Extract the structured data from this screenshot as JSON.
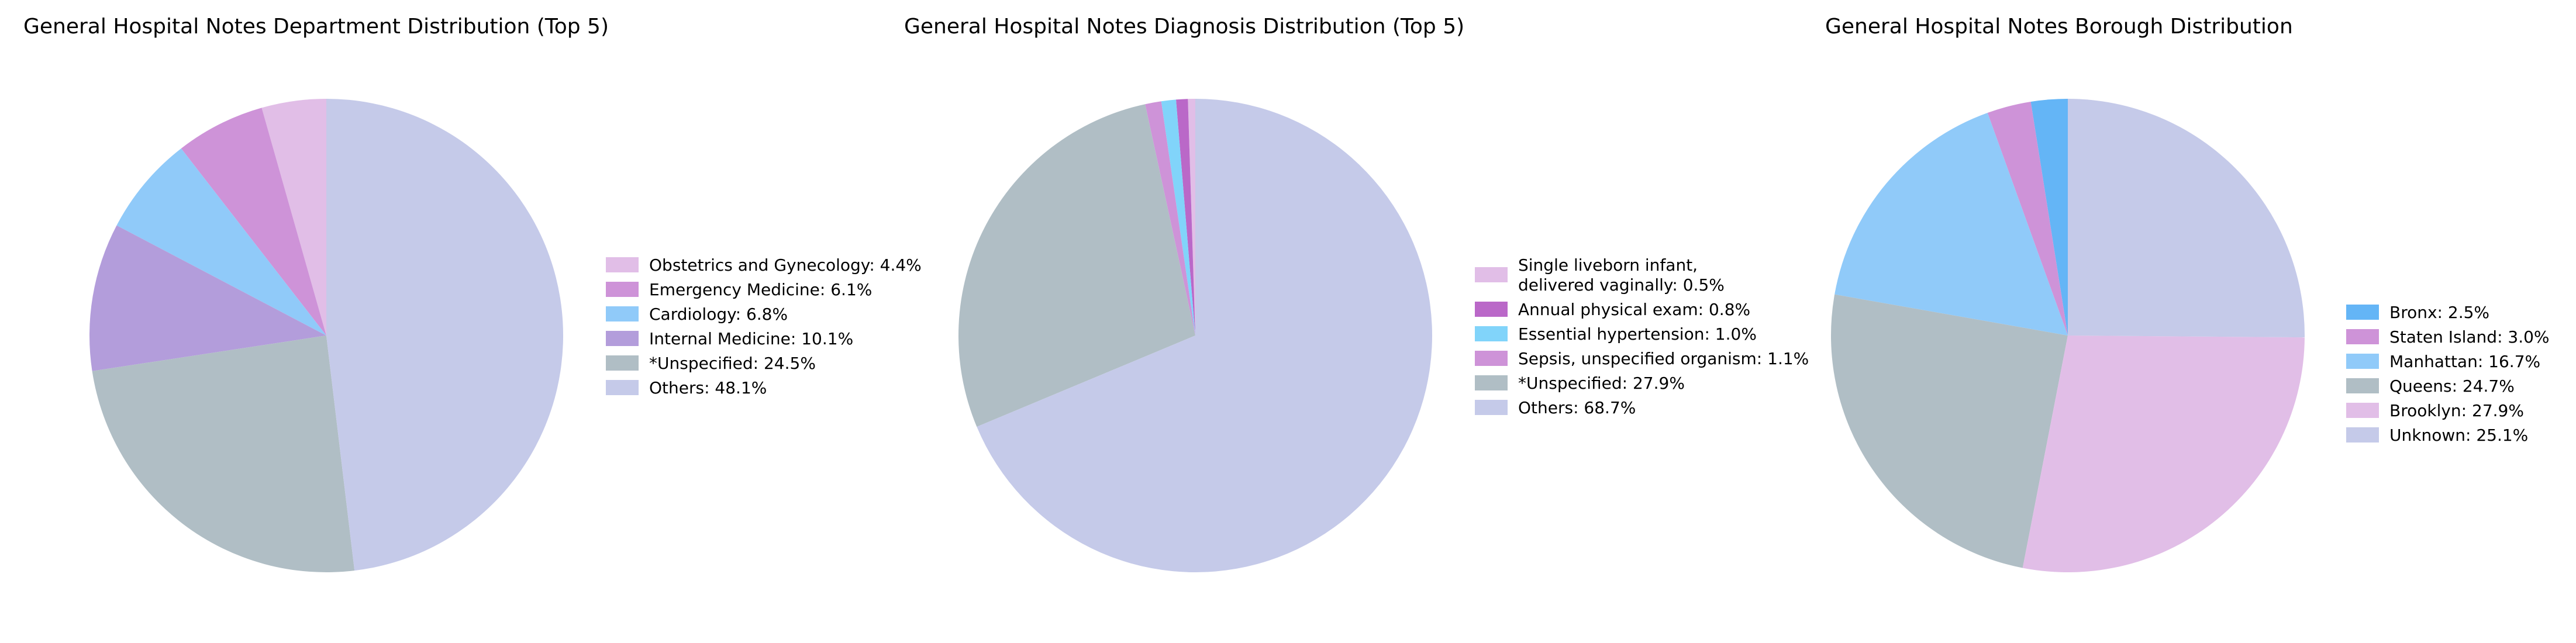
{
  "chart_data": [
    {
      "type": "pie",
      "title": "General Hospital Notes Department Distribution (Top 5)",
      "slices": [
        {
          "label": "Obstetrics and Gynecology: 4.4%",
          "value": 4.4,
          "color": "#e1bee7"
        },
        {
          "label": "Emergency Medicine: 6.1%",
          "value": 6.1,
          "color": "#ce93d8"
        },
        {
          "label": "Cardiology: 6.8%",
          "value": 6.8,
          "color": "#90caf9"
        },
        {
          "label": "Internal Medicine: 10.1%",
          "value": 10.1,
          "color": "#b39ddb"
        },
        {
          "label": "*Unspecified: 24.5%",
          "value": 24.5,
          "color": "#b0bec5"
        },
        {
          "label": "Others: 48.1%",
          "value": 48.1,
          "color": "#c5cae9"
        }
      ],
      "start_angle_deg": 90,
      "direction": "counterclockwise",
      "legend_position": "right"
    },
    {
      "type": "pie",
      "title": "General Hospital Notes Diagnosis Distribution (Top 5)",
      "slices": [
        {
          "label": [
            "Single liveborn infant,",
            "delivered vaginally: 0.5%"
          ],
          "value": 0.5,
          "color": "#e1bee7"
        },
        {
          "label": "Annual physical exam: 0.8%",
          "value": 0.8,
          "color": "#ba68c8"
        },
        {
          "label": "Essential hypertension: 1.0%",
          "value": 1.0,
          "color": "#81d4fa"
        },
        {
          "label": "Sepsis, unspecified organism: 1.1%",
          "value": 1.1,
          "color": "#ce93d8"
        },
        {
          "label": "*Unspecified: 27.9%",
          "value": 27.9,
          "color": "#b0bec5"
        },
        {
          "label": "Others: 68.7%",
          "value": 68.7,
          "color": "#c5cae9"
        }
      ],
      "start_angle_deg": 90,
      "direction": "counterclockwise",
      "legend_position": "right"
    },
    {
      "type": "pie",
      "title": "General Hospital Notes Borough Distribution",
      "slices": [
        {
          "label": "Bronx: 2.5%",
          "value": 2.5,
          "color": "#64b5f6"
        },
        {
          "label": "Staten Island: 3.0%",
          "value": 3.0,
          "color": "#ce93d8"
        },
        {
          "label": "Manhattan: 16.7%",
          "value": 16.7,
          "color": "#90caf9"
        },
        {
          "label": "Queens: 24.7%",
          "value": 24.7,
          "color": "#b0bec5"
        },
        {
          "label": "Brooklyn: 27.9%",
          "value": 27.9,
          "color": "#e1bee7"
        },
        {
          "label": "Unknown: 25.1%",
          "value": 25.1,
          "color": "#c5cae9"
        }
      ],
      "start_angle_deg": 90,
      "direction": "counterclockwise",
      "legend_position": "right"
    }
  ]
}
